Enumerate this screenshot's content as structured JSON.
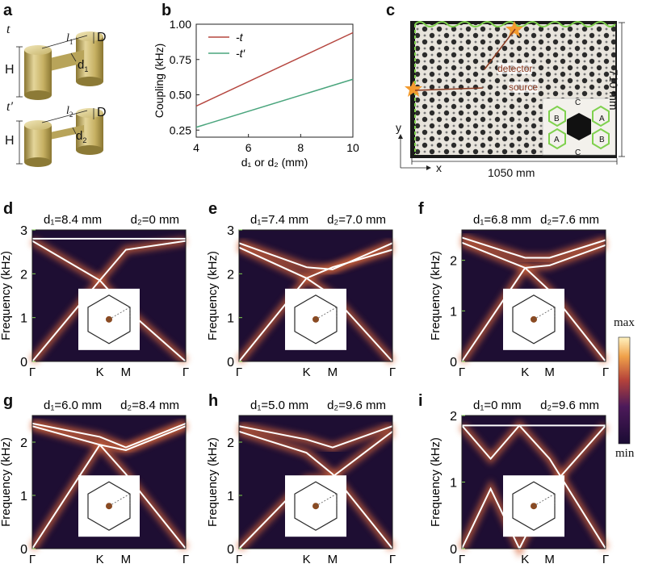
{
  "panel_labels": [
    "a",
    "b",
    "c",
    "d",
    "e",
    "f",
    "g",
    "h",
    "i"
  ],
  "panel_a": {
    "top_label": "t",
    "bottom_label": "t′",
    "H": "H",
    "D": "D",
    "l1": "l",
    "l1_sub": "1",
    "d1": "d",
    "d1_sub": "1",
    "l2": "l",
    "l2_sub": "2",
    "d2": "d",
    "d2_sub": "2"
  },
  "panel_c": {
    "detector": "detector",
    "source": "source",
    "dim_x": "1050 mm",
    "dim_y": "710 mm",
    "axis_x": "x",
    "axis_y": "y",
    "inset_labels": [
      "C",
      "B",
      "A",
      "A",
      "B",
      "C"
    ]
  },
  "colorbar": {
    "max": "max",
    "min": "min"
  },
  "chart_data": [
    {
      "type": "line",
      "panel": "b",
      "xlabel": "d₁ or d₂ (mm)",
      "ylabel": "Coupling (kHz)",
      "xlim": [
        4,
        10
      ],
      "ylim": [
        0.2,
        1.0
      ],
      "xticks": [
        4,
        6,
        8,
        10
      ],
      "yticks": [
        0.25,
        0.5,
        0.75,
        1.0
      ],
      "ytick_labels": [
        "0.25",
        "0.50",
        "0.75",
        "1.00"
      ],
      "legend_position": "top-left",
      "series": [
        {
          "name": "-t",
          "color": "#b5463f",
          "x": [
            4,
            10
          ],
          "y": [
            0.42,
            0.94
          ]
        },
        {
          "name": "-t′",
          "color": "#4aa57d",
          "x": [
            4,
            10
          ],
          "y": [
            0.27,
            0.61
          ]
        }
      ]
    },
    {
      "type": "heatmap",
      "panel": "d",
      "title_left": "d₁=8.4 mm",
      "title_right": "d₂=0 mm",
      "ylabel": "Frequency (kHz)",
      "ylim": [
        0,
        3
      ],
      "yticks": [
        0,
        1,
        2,
        3
      ],
      "xticks": [
        "Γ",
        "K",
        "M",
        "Γ"
      ]
    },
    {
      "type": "heatmap",
      "panel": "e",
      "title_left": "d₁=7.4 mm",
      "title_right": "d₂=7.0 mm",
      "ylabel": "Frequency (kHz)",
      "ylim": [
        0,
        3
      ],
      "yticks": [
        0,
        1,
        2,
        3
      ],
      "xticks": [
        "Γ",
        "K",
        "M",
        "Γ"
      ]
    },
    {
      "type": "heatmap",
      "panel": "f",
      "title_left": "d₁=6.8 mm",
      "title_right": "d₂=7.6 mm",
      "ylabel": "Frequency (kHz)",
      "ylim": [
        0,
        2.6
      ],
      "yticks": [
        0,
        1,
        2
      ],
      "xticks": [
        "Γ",
        "K",
        "M",
        "Γ"
      ]
    },
    {
      "type": "heatmap",
      "panel": "g",
      "title_left": "d₁=6.0 mm",
      "title_right": "d₂=8.4 mm",
      "ylabel": "Frequency (kHz)",
      "ylim": [
        0,
        2.5
      ],
      "yticks": [
        0,
        1,
        2
      ],
      "xticks": [
        "Γ",
        "K",
        "M",
        "Γ"
      ]
    },
    {
      "type": "heatmap",
      "panel": "h",
      "title_left": "d₁=5.0 mm",
      "title_right": "d₂=9.6 mm",
      "ylabel": "Frequency (kHz)",
      "ylim": [
        0,
        2.5
      ],
      "yticks": [
        0,
        1,
        2
      ],
      "xticks": [
        "Γ",
        "K",
        "M",
        "Γ"
      ]
    },
    {
      "type": "heatmap",
      "panel": "i",
      "title_left": "d₁=0 mm",
      "title_right": "d₂=9.6 mm",
      "ylabel": "Frequency (kHz)",
      "ylim": [
        0,
        2
      ],
      "yticks": [
        0,
        1,
        2
      ],
      "xticks": [
        "Γ",
        "K",
        "M",
        "Γ"
      ]
    }
  ]
}
